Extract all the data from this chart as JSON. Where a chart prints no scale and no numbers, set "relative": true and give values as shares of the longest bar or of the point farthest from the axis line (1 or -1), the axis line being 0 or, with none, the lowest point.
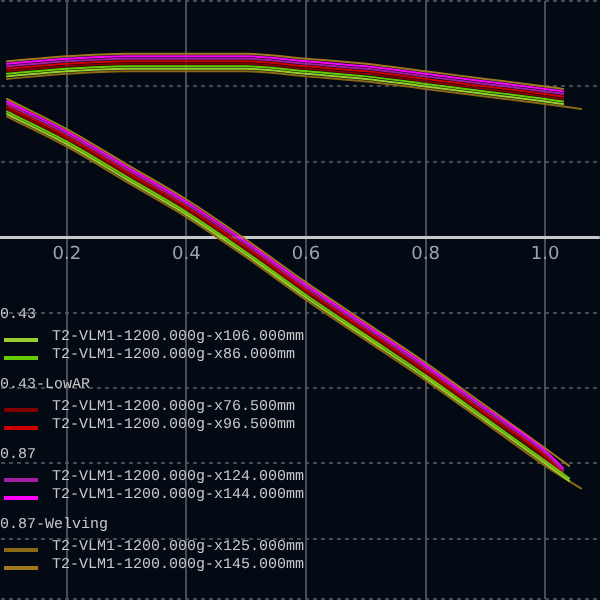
{
  "chart_data": {
    "type": "line",
    "relative": true,
    "xlim": [
      0.09,
      1.09
    ],
    "xticks": [
      0.2,
      0.4,
      0.6,
      0.8,
      {
        "value": 1,
        "label": "1.0"
      }
    ],
    "grid": true,
    "legend": "bottom left",
    "marker": "none",
    "line_style": "solid",
    "annotations": [
      "0.43",
      "0.43-LowAR",
      "0.87",
      "0.87-Welving"
    ],
    "series": [
      {
        "name": "T2-VLM1-1200.000g-x106.000mm",
        "color": "#9acd32",
        "x": [
          0.1,
          0.2,
          0.3,
          0.4,
          0.5,
          0.6,
          0.7,
          0.8,
          0.9,
          1.0,
          1.04
        ],
        "values": [
          0.49,
          0.37,
          0.23,
          0.09,
          -0.07,
          -0.24,
          -0.4,
          -0.56,
          -0.73,
          -0.9,
          -0.97
        ]
      },
      {
        "name": "T2-VLM1-1200.000g-x86.000mm",
        "color": "#66cc00",
        "x": [
          0.1,
          0.2,
          0.3,
          0.4,
          0.5,
          0.6,
          0.7,
          0.8,
          0.9,
          1.0,
          1.04
        ],
        "values": [
          0.5,
          0.38,
          0.24,
          0.1,
          -0.06,
          -0.23,
          -0.39,
          -0.55,
          -0.72,
          -0.89,
          -0.96
        ]
      },
      {
        "name": "T2-VLM1-1200.000g-x76.500mm",
        "color": "#800000",
        "x": [
          0.1,
          0.2,
          0.3,
          0.4,
          0.5,
          0.6,
          0.7,
          0.8,
          0.9,
          1.0,
          1.03
        ],
        "values": [
          0.51,
          0.39,
          0.25,
          0.11,
          -0.05,
          -0.22,
          -0.38,
          -0.54,
          -0.71,
          -0.88,
          -0.95
        ]
      },
      {
        "name": "T2-VLM1-1200.000g-x96.500mm",
        "color": "#cc0000",
        "x": [
          0.1,
          0.2,
          0.3,
          0.4,
          0.5,
          0.6,
          0.7,
          0.8,
          0.9,
          1.0,
          1.03
        ],
        "values": [
          0.52,
          0.4,
          0.26,
          0.12,
          -0.04,
          -0.21,
          -0.37,
          -0.53,
          -0.7,
          -0.87,
          -0.94
        ]
      },
      {
        "name": "T2-VLM1-1200.000g-x124.000mm",
        "color": "#a020a0",
        "x": [
          0.1,
          0.2,
          0.3,
          0.4,
          0.5,
          0.6,
          0.7,
          0.8,
          0.9,
          1.0,
          1.03
        ],
        "values": [
          0.53,
          0.41,
          0.27,
          0.13,
          -0.03,
          -0.2,
          -0.36,
          -0.52,
          -0.69,
          -0.86,
          -0.93
        ]
      },
      {
        "name": "T2-VLM1-1200.000g-x144.000mm",
        "color": "#ff00ff",
        "x": [
          0.1,
          0.2,
          0.3,
          0.4,
          0.5,
          0.6,
          0.7,
          0.8,
          0.9,
          1.0,
          1.03
        ],
        "values": [
          0.54,
          0.42,
          0.28,
          0.14,
          -0.02,
          -0.19,
          -0.35,
          -0.51,
          -0.68,
          -0.85,
          -0.92
        ]
      },
      {
        "name": "T2-VLM1-1200.000g-x125.000mm",
        "color": "#8b6914",
        "x": [
          0.1,
          0.2,
          0.3,
          0.4,
          0.5,
          0.6,
          0.7,
          0.8,
          0.9,
          1.0,
          1.06
        ],
        "values": [
          0.48,
          0.36,
          0.22,
          0.08,
          -0.08,
          -0.25,
          -0.41,
          -0.57,
          -0.74,
          -0.91,
          -1
        ]
      },
      {
        "name": "T2-VLM1-1200.000g-x145.000mm",
        "color": "#a07820",
        "x": [
          0.1,
          0.2,
          0.3,
          0.4,
          0.5,
          0.6,
          0.7,
          0.8,
          0.9,
          1.0,
          1.04
        ],
        "values": [
          0.55,
          0.43,
          0.29,
          0.15,
          -0.01,
          -0.18,
          -0.34,
          -0.5,
          -0.67,
          -0.84,
          -0.91
        ]
      },
      {
        "color": "#9acd32",
        "x": [
          0.1,
          0.2,
          0.3,
          0.4,
          0.5,
          0.6,
          0.7,
          0.8,
          0.9,
          1.0,
          1.03
        ],
        "values": [
          0.64,
          0.66,
          0.67,
          0.67,
          0.67,
          0.65,
          0.63,
          0.6,
          0.57,
          0.54,
          0.53
        ]
      },
      {
        "color": "#66cc00",
        "x": [
          0.1,
          0.2,
          0.3,
          0.4,
          0.5,
          0.6,
          0.7,
          0.8,
          0.9,
          1.0,
          1.03
        ],
        "values": [
          0.65,
          0.67,
          0.68,
          0.68,
          0.68,
          0.66,
          0.64,
          0.61,
          0.58,
          0.55,
          0.54
        ]
      },
      {
        "color": "#800000",
        "x": [
          0.1,
          0.2,
          0.3,
          0.4,
          0.5,
          0.6,
          0.7,
          0.8,
          0.9,
          1.0,
          1.03
        ],
        "values": [
          0.66,
          0.68,
          0.69,
          0.69,
          0.69,
          0.67,
          0.65,
          0.62,
          0.59,
          0.56,
          0.55
        ]
      },
      {
        "color": "#cc0000",
        "x": [
          0.1,
          0.2,
          0.3,
          0.4,
          0.5,
          0.6,
          0.7,
          0.8,
          0.9,
          1.0,
          1.03
        ],
        "values": [
          0.67,
          0.69,
          0.7,
          0.7,
          0.7,
          0.68,
          0.66,
          0.63,
          0.6,
          0.57,
          0.56
        ]
      },
      {
        "color": "#a020a0",
        "x": [
          0.1,
          0.2,
          0.3,
          0.4,
          0.5,
          0.6,
          0.7,
          0.8,
          0.9,
          1.0,
          1.03
        ],
        "values": [
          0.68,
          0.7,
          0.71,
          0.71,
          0.71,
          0.69,
          0.67,
          0.64,
          0.61,
          0.58,
          0.57
        ]
      },
      {
        "color": "#ff00ff",
        "x": [
          0.1,
          0.2,
          0.3,
          0.4,
          0.5,
          0.6,
          0.7,
          0.8,
          0.9,
          1.0,
          1.03
        ],
        "values": [
          0.69,
          0.71,
          0.72,
          0.72,
          0.72,
          0.7,
          0.68,
          0.65,
          0.62,
          0.59,
          0.58
        ]
      },
      {
        "color": "#8b6914",
        "x": [
          0.1,
          0.2,
          0.3,
          0.4,
          0.5,
          0.6,
          0.7,
          0.8,
          0.9,
          1.0,
          1.06
        ],
        "values": [
          0.63,
          0.65,
          0.66,
          0.66,
          0.66,
          0.64,
          0.62,
          0.59,
          0.56,
          0.53,
          0.51
        ]
      },
      {
        "color": "#a07820",
        "x": [
          0.1,
          0.2,
          0.3,
          0.4,
          0.5,
          0.6,
          0.7,
          0.8,
          0.9,
          1.0,
          1.03
        ],
        "values": [
          0.7,
          0.72,
          0.73,
          0.73,
          0.73,
          0.71,
          0.69,
          0.66,
          0.63,
          0.6,
          0.59
        ]
      }
    ]
  }
}
